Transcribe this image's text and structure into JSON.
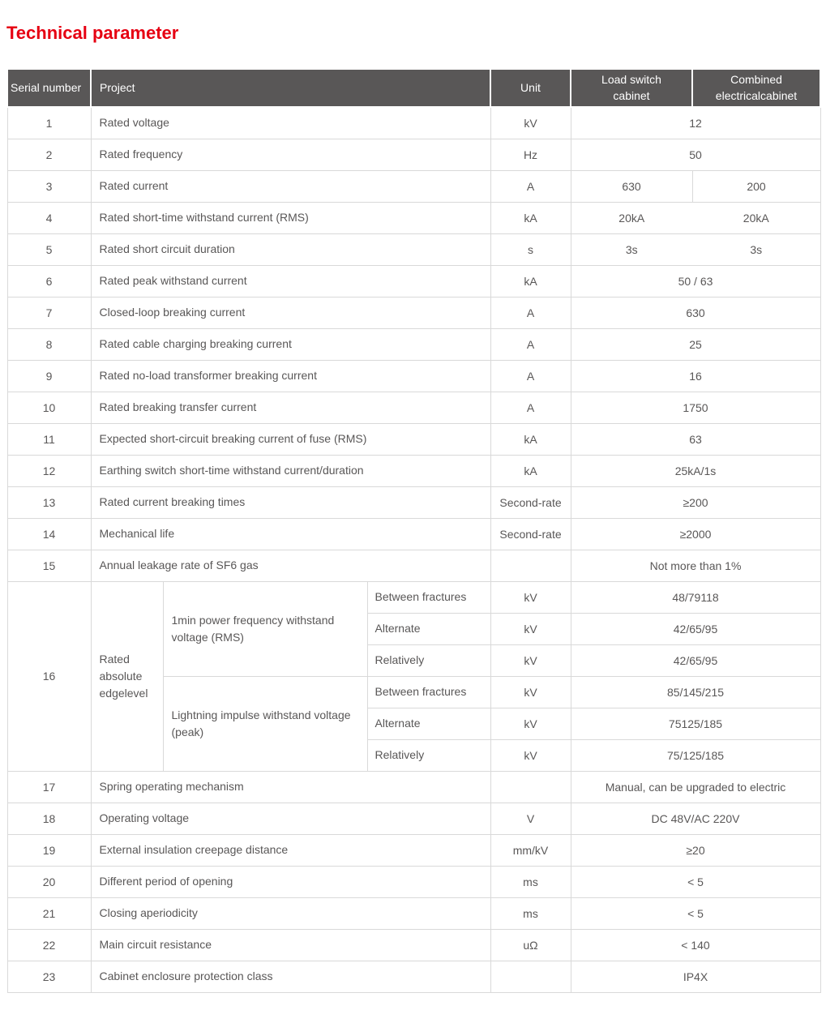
{
  "page": {
    "title": "Technical parameter"
  },
  "colors": {
    "accent_red": "#e60012",
    "header_background": "#595757",
    "body_text": "#595757",
    "grid_border": "#d9d9d9",
    "header_text": "#ffffff"
  },
  "table": {
    "headers": {
      "serial": "Serial number",
      "project": "Project",
      "unit": "Unit",
      "col1": "Load switch cabinet",
      "col2": "Combined electricalcabinet"
    },
    "rows": [
      {
        "no": "1",
        "project": "Rated voltage",
        "unit": "kV",
        "values": [
          "12"
        ]
      },
      {
        "no": "2",
        "project": "Rated frequency",
        "unit": "Hz",
        "values": [
          "50"
        ]
      },
      {
        "no": "3",
        "project": "Rated current",
        "unit": "A",
        "values": [
          "630",
          "200"
        ],
        "divider": true
      },
      {
        "no": "4",
        "project": "Rated short-time withstand current (RMS)",
        "unit": "kA",
        "values": [
          "20kA",
          "20kA"
        ],
        "divider": false
      },
      {
        "no": "5",
        "project": "Rated short circuit duration",
        "unit": "s",
        "values": [
          "3s",
          "3s"
        ],
        "divider": false
      },
      {
        "no": "6",
        "project": "Rated peak withstand current",
        "unit": "kA",
        "values": [
          "50 / 63"
        ]
      },
      {
        "no": "7",
        "project": "Closed-loop breaking current",
        "unit": "A",
        "values": [
          "630"
        ]
      },
      {
        "no": "8",
        "project": "Rated cable charging breaking current",
        "unit": "A",
        "values": [
          "25"
        ]
      },
      {
        "no": "9",
        "project": "Rated no-load transformer breaking current",
        "unit": "A",
        "values": [
          "16"
        ]
      },
      {
        "no": "10",
        "project": "Rated breaking transfer current",
        "unit": "A",
        "values": [
          "1750"
        ]
      },
      {
        "no": "11",
        "project": "Expected short-circuit breaking current of fuse (RMS)",
        "unit": "kA",
        "values": [
          "63"
        ]
      },
      {
        "no": "12",
        "project": "Earthing switch short-time withstand current/duration",
        "unit": "kA",
        "values": [
          "25kA/1s"
        ]
      },
      {
        "no": "13",
        "project": "Rated current breaking times",
        "unit": "Second-rate",
        "values": [
          "≥200"
        ]
      },
      {
        "no": "14",
        "project": "Mechanical life",
        "unit": "Second-rate",
        "values": [
          "≥2000"
        ]
      },
      {
        "no": "15",
        "project": "Annual leakage rate of SF6 gas",
        "unit": "",
        "values": [
          "Not more than 1%"
        ]
      },
      {
        "no": "16",
        "type": "group",
        "group_label": "Rated absolute edgelevel",
        "sections": [
          {
            "desc": "1min power frequency withstand voltage (RMS)",
            "items": [
              {
                "label": "Between fractures",
                "unit": "kV",
                "value": "48/79118"
              },
              {
                "label": "Alternate",
                "unit": "kV",
                "value": "42/65/95"
              },
              {
                "label": "Relatively",
                "unit": "kV",
                "value": "42/65/95"
              }
            ]
          },
          {
            "desc": "Lightning impulse withstand voltage (peak)",
            "items": [
              {
                "label": "Between fractures",
                "unit": "kV",
                "value": "85/145/215"
              },
              {
                "label": "Alternate",
                "unit": "kV",
                "value": "75125/185"
              },
              {
                "label": "Relatively",
                "unit": "kV",
                "value": "75/125/185"
              }
            ]
          }
        ]
      },
      {
        "no": "17",
        "project": "Spring operating mechanism",
        "unit": "",
        "values": [
          "Manual, can be upgraded to electric"
        ]
      },
      {
        "no": "18",
        "project": "Operating voltage",
        "unit": "V",
        "values": [
          "DC 48V/AC 220V"
        ]
      },
      {
        "no": "19",
        "project": "External insulation creepage distance",
        "unit": "mm/kV",
        "values": [
          "≥20"
        ]
      },
      {
        "no": "20",
        "project": "Different period of opening",
        "unit": "ms",
        "values": [
          "< 5"
        ]
      },
      {
        "no": "21",
        "project": "Closing aperiodicity",
        "unit": "ms",
        "values": [
          "< 5"
        ]
      },
      {
        "no": "22",
        "project": "Main circuit resistance",
        "unit": "uΩ",
        "values": [
          "< 140"
        ]
      },
      {
        "no": "23",
        "project": "Cabinet enclosure protection class",
        "unit": "",
        "values": [
          "IP4X"
        ]
      }
    ]
  }
}
